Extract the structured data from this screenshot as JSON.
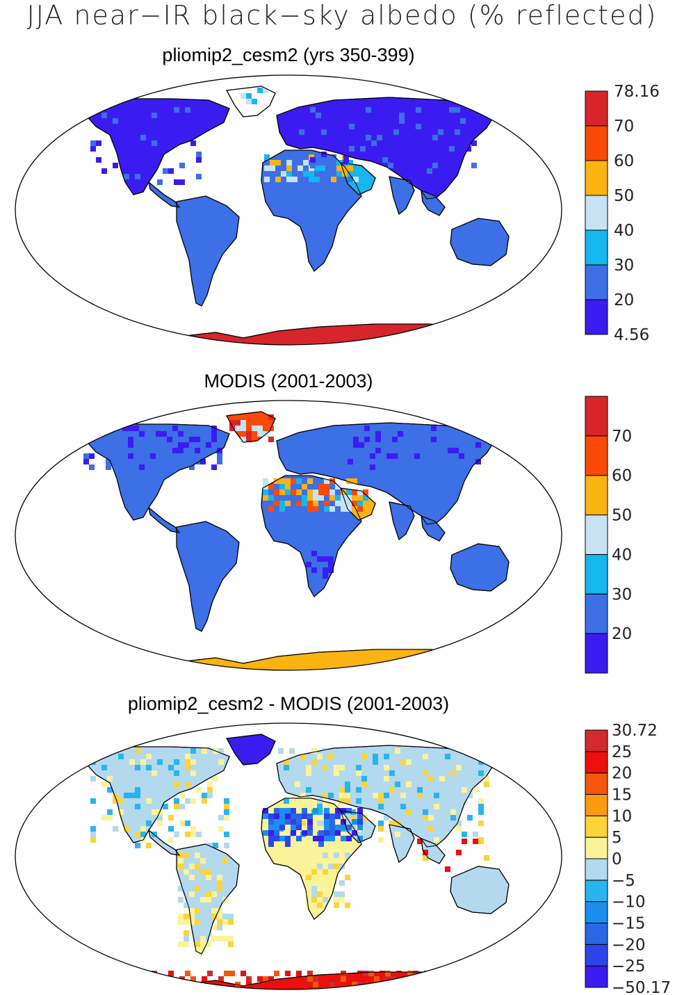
{
  "title": "JJA near−IR black−sky albedo (% reflected)",
  "panels": [
    {
      "id": "p1",
      "title": "pliomip2_cesm2 (yrs 350-399)",
      "colorbar": {
        "colors": [
          "#3b1cf0",
          "#3d6fe6",
          "#16b6ee",
          "#c7e3f3",
          "#fbb312",
          "#fa4a06",
          "#d6262b"
        ],
        "labels": [
          "4.56",
          "20",
          "30",
          "40",
          "50",
          "60",
          "70",
          "78.16"
        ]
      }
    },
    {
      "id": "p2",
      "title": "MODIS (2001-2003)",
      "colorbar": {
        "colors": [
          "#3b1cf0",
          "#3d6fe6",
          "#16b6ee",
          "#c7e3f3",
          "#fbb312",
          "#fa4a06",
          "#d6262b"
        ],
        "labels": [
          "",
          "20",
          "30",
          "40",
          "50",
          "60",
          "70",
          ""
        ]
      }
    },
    {
      "id": "p3",
      "title": "pliomip2_cesm2 - MODIS (2001-2003)",
      "colorbar": {
        "colors": [
          "#3b1cf0",
          "#2d45e8",
          "#2a67e4",
          "#1b8ff0",
          "#29b4ee",
          "#b3d9ef",
          "#fbf39a",
          "#fbd43a",
          "#f99a10",
          "#f4570d",
          "#e9100e",
          "#d22a2d"
        ],
        "labels": [
          "−50.17",
          "−25",
          "−20",
          "−15",
          "−10",
          "−5",
          "0",
          "5",
          "10",
          "15",
          "20",
          "25",
          "30.72"
        ]
      }
    }
  ]
}
